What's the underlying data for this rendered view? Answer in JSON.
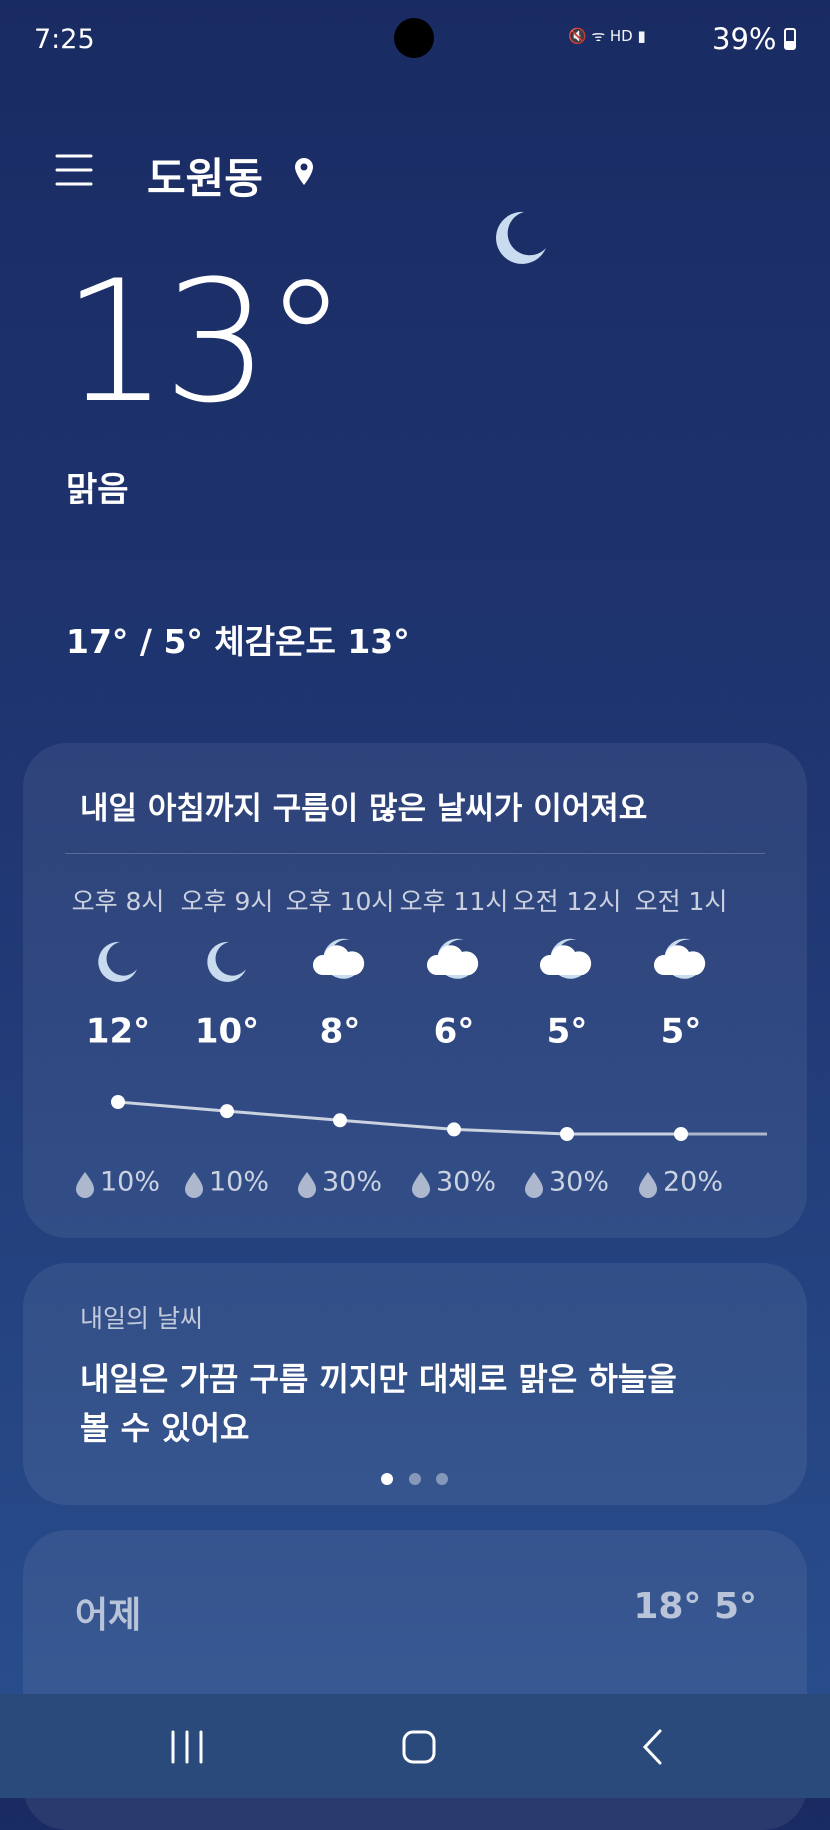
{
  "status_bar": {
    "time": "7:25",
    "battery": "39%"
  },
  "header": {
    "location": "도원동"
  },
  "current": {
    "temperature": "13°",
    "condition": "맑음",
    "details": "17° / 5° 체감온도 13°"
  },
  "hourly_card": {
    "title": "내일 아침까지 구름이 많은 날씨가 이어져요",
    "hours": [
      {
        "time": "오후 8시",
        "temp": 12,
        "temp_label": "12°",
        "precip": "10%"
      },
      {
        "time": "오후 9시",
        "temp": 10,
        "temp_label": "10°",
        "precip": "10%"
      },
      {
        "time": "오후 10시",
        "temp": 8,
        "temp_label": "8°",
        "precip": "30%"
      },
      {
        "time": "오후 11시",
        "temp": 6,
        "temp_label": "6°",
        "precip": "30%"
      },
      {
        "time": "오전 12시",
        "temp": 5,
        "temp_label": "5°",
        "precip": "30%"
      },
      {
        "time": "오전 1시",
        "temp": 5,
        "temp_label": "5°",
        "precip": "20%"
      }
    ]
  },
  "tomorrow_card": {
    "label": "내일의 날씨",
    "text": "내일은 가끔 구름 끼지만 대체로 맑은 하늘을 볼 수 있어요"
  },
  "yesterday": {
    "label": "어제",
    "temps": "18° 5°"
  }
}
